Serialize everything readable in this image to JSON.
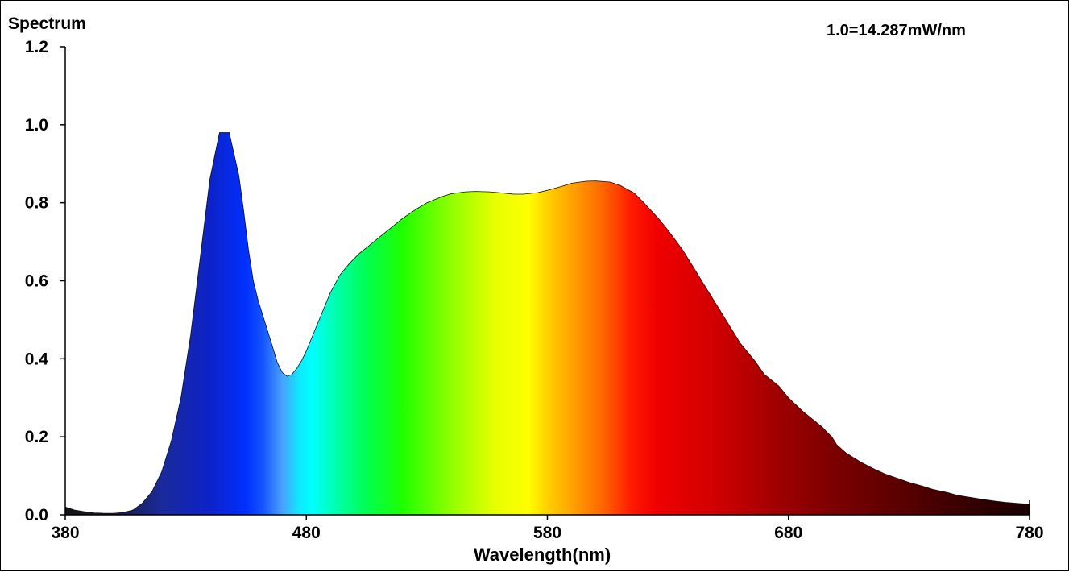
{
  "chart_data": {
    "type": "area",
    "title": "Spectrum",
    "annotation": "1.0=14.287mW/nm",
    "xlabel": "Wavelength(nm)",
    "ylabel": "Spectrum",
    "xlim": [
      380,
      780
    ],
    "ylim": [
      0,
      1.2
    ],
    "x_ticks": [
      "380",
      "480",
      "580",
      "680",
      "780"
    ],
    "y_ticks": [
      "0.0",
      "0.2",
      "0.4",
      "0.6",
      "0.8",
      "1.0",
      "1.2"
    ],
    "grid": false,
    "fill": "visible-spectrum colors by wavelength",
    "x": [
      380,
      384,
      388,
      392,
      396,
      400,
      404,
      408,
      412,
      416,
      420,
      424,
      428,
      432,
      436,
      440,
      444,
      448,
      452,
      454,
      456,
      458,
      460,
      462,
      464,
      466,
      468,
      470,
      472,
      474,
      476,
      478,
      480,
      482,
      484,
      486,
      488,
      490,
      494,
      498,
      502,
      506,
      510,
      516,
      520,
      526,
      530,
      536,
      540,
      546,
      550,
      556,
      560,
      566,
      570,
      576,
      580,
      586,
      590,
      596,
      600,
      606,
      610,
      616,
      620,
      626,
      630,
      636,
      640,
      646,
      650,
      656,
      660,
      666,
      670,
      676,
      680,
      686,
      690,
      694,
      696,
      698,
      700,
      704,
      710,
      716,
      720,
      726,
      730,
      736,
      740,
      746,
      750,
      756,
      760,
      766,
      770,
      776,
      780
    ],
    "y": [
      0.02,
      0.012,
      0.008,
      0.005,
      0.004,
      0.004,
      0.006,
      0.012,
      0.03,
      0.06,
      0.11,
      0.19,
      0.3,
      0.46,
      0.66,
      0.86,
      0.98,
      0.98,
      0.87,
      0.78,
      0.68,
      0.6,
      0.55,
      0.51,
      0.47,
      0.43,
      0.39,
      0.365,
      0.355,
      0.36,
      0.375,
      0.395,
      0.42,
      0.45,
      0.48,
      0.51,
      0.54,
      0.57,
      0.615,
      0.645,
      0.67,
      0.69,
      0.71,
      0.74,
      0.76,
      0.785,
      0.8,
      0.815,
      0.823,
      0.828,
      0.829,
      0.828,
      0.826,
      0.822,
      0.822,
      0.826,
      0.832,
      0.842,
      0.85,
      0.855,
      0.856,
      0.853,
      0.845,
      0.825,
      0.8,
      0.76,
      0.73,
      0.68,
      0.64,
      0.58,
      0.54,
      0.48,
      0.44,
      0.395,
      0.36,
      0.33,
      0.3,
      0.265,
      0.245,
      0.225,
      0.212,
      0.2,
      0.18,
      0.158,
      0.135,
      0.116,
      0.105,
      0.092,
      0.083,
      0.073,
      0.065,
      0.057,
      0.05,
      0.044,
      0.04,
      0.035,
      0.032,
      0.029,
      0.027
    ]
  }
}
